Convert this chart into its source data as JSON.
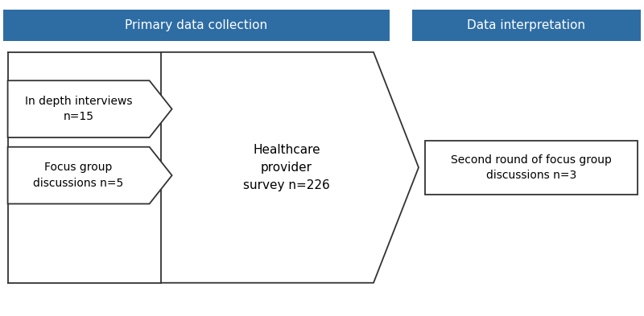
{
  "header1_text": "Primary data collection",
  "header2_text": "Data interpretation",
  "header_color": "#2e6da4",
  "header_text_color": "#ffffff",
  "box1_text": "In depth interviews\nn=15",
  "box2_text": "Focus group\ndiscussions n=5",
  "arrow_text": "Healthcare\nprovider\nsurvey n=226",
  "right_box_text": "Second round of focus group\ndiscussions n=3",
  "bg_color": "#ffffff",
  "edge_color": "#333333",
  "fig_width": 8.0,
  "fig_height": 3.93
}
